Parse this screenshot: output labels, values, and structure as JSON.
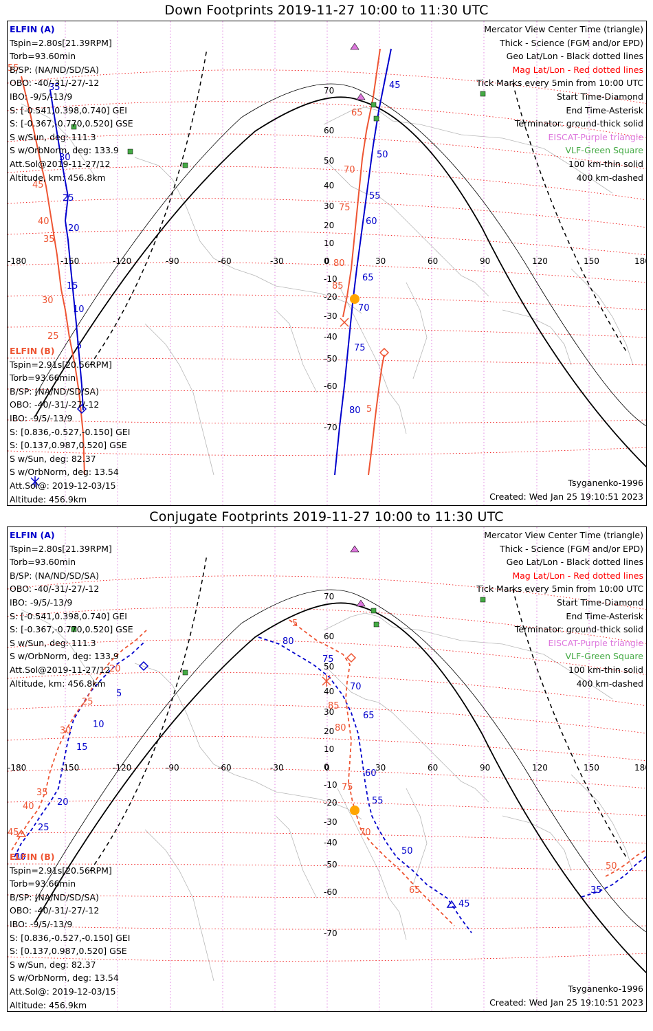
{
  "panels": [
    {
      "title": "Down Footprints 2019-11-27 10:00 to 11:30 UTC",
      "elfin_a": {
        "name": "ELFIN (A)",
        "lines": [
          "Tspin=2.80s[21.39RPM]",
          "Torb=93.60min",
          "B/SP: (NA/ND/SD/SA)",
          "OBO: -40/-31/-27/-12",
          "IBO: -9/5/-13/9",
          "S: [-0.541,0.398,0.740] GEI",
          "S: [-0.367,-0.770,0.520] GSE",
          "S w/Sun, deg: 111.3",
          "S w/OrbNorm, deg: 133.9",
          "Att.Sol@2019-11-27/12",
          "Altitude, km: 456.8km"
        ]
      },
      "elfin_b": {
        "name": "ELFIN (B)",
        "lines": [
          "Tspin=2.91s[20.56RPM]",
          "Torb=93.66min",
          "B/SP: (NA/ND/SD/SA)",
          "OBO: -40/-31/-27/-12",
          "IBO: -9/5/-13/9",
          "S: [0.836,-0.527,-0.150] GEI",
          "S: [0.137,0.987,0.520] GSE",
          "S w/Sun, deg: 82.37",
          "S w/OrbNorm, deg: 13.54",
          "Att.Sol@: 2019-12-03/15",
          "Altitude: 456.9km"
        ]
      },
      "legend": [
        "Mercator View Center Time (triangle)",
        "Thick - Science (FGM and/or EPD)",
        "Geo Lat/Lon - Black dotted lines",
        "Mag Lat/Lon - Red dotted lines",
        "Tick Marks every 5min from 10:00 UTC",
        "Start Time-Diamond",
        "End Time-Asterisk",
        "Terminator: ground-thick solid",
        "EISCAT-Purple triangle",
        "VLF-Green Square",
        "100 km-thin solid",
        "400 km-dashed"
      ],
      "model": "Tsyganenko-1996",
      "created": "Created: Wed Jan 25 19:10:51 2023"
    },
    {
      "title": "Conjugate Footprints 2019-11-27 10:00 to 11:30 UTC",
      "elfin_a": {
        "name": "ELFIN (A)",
        "lines": [
          "Tspin=2.80s[21.39RPM]",
          "Torb=93.60min",
          "B/SP: (NA/ND/SD/SA)",
          "OBO: -40/-31/-27/-12",
          "IBO: -9/5/-13/9",
          "S: [-0.541,0.398,0.740] GEI",
          "S: [-0.367,-0.770,0.520] GSE",
          "S w/Sun, deg: 111.3",
          "S w/OrbNorm, deg: 133.9",
          "Att.Sol@2019-11-27/12",
          "Altitude, km: 456.8km"
        ]
      },
      "elfin_b": {
        "name": "ELFIN (B)",
        "lines": [
          "Tspin=2.91s[20.56RPM]",
          "Torb=93.66min",
          "B/SP: (NA/ND/SD/SA)",
          "OBO: -40/-31/-27/-12",
          "IBO: -9/5/-13/9",
          "S: [0.836,-0.527,-0.150] GEI",
          "S: [0.137,0.987,0.520] GSE",
          "S w/Sun, deg: 82.37",
          "S w/OrbNorm, deg: 13.54",
          "Att.Sol@: 2019-12-03/15",
          "Altitude: 456.9km"
        ]
      },
      "legend": [
        "Mercator View Center Time (triangle)",
        "Thick - Science (FGM and/or EPD)",
        "Geo Lat/Lon - Black dotted lines",
        "Mag Lat/Lon - Red dotted lines",
        "Tick Marks every 5min from 10:00 UTC",
        "Start Time-Diamond",
        "End Time-Asterisk",
        "Terminator: ground-thick solid",
        "EISCAT-Purple triangle",
        "VLF-Green Square",
        "100 km-thin solid",
        "400 km-dashed"
      ],
      "model": "Tsyganenko-1996",
      "created": "Created: Wed Jan 25 19:10:51 2023"
    }
  ],
  "lon_ticks": [
    "-180",
    "-150",
    "-120",
    "-90",
    "-60",
    "-30",
    "0",
    "30",
    "60",
    "90",
    "120",
    "150",
    "180"
  ],
  "lat_ticks": [
    "70",
    "60",
    "50",
    "40",
    "30",
    "20",
    "10",
    "0",
    "-10",
    "-20",
    "-30",
    "-40",
    "-50",
    "-60",
    "-70"
  ],
  "colors": {
    "elfin_a": "#0000cc",
    "elfin_b": "#ee5533",
    "geo_grid": "#dd77dd",
    "mag_grid": "#ee0000",
    "coast": "#aaaaaa",
    "eiscat": "#dd77dd",
    "vlf": "#44aa44",
    "sun": "#ffa500"
  },
  "map_data": {
    "down": {
      "elfin_a": {
        "lon": [
          -157,
          -156,
          -154,
          -152,
          -150,
          -149,
          -150,
          -150,
          -150,
          -148,
          -146,
          -144,
          -143
        ],
        "lat": [
          -56,
          -48,
          -38,
          -30,
          -18,
          -8,
          8,
          20,
          30,
          40,
          50,
          58,
          66
        ],
        "labels": [
          {
            "t": "5",
            "lon": -145,
            "lat": -15
          },
          {
            "t": "10",
            "lon": -148,
            "lat": -5
          },
          {
            "t": "15",
            "lon": -150,
            "lat": 5
          },
          {
            "t": "20",
            "lon": -148,
            "lat": 24
          },
          {
            "t": "25",
            "lon": -150,
            "lat": 34
          },
          {
            "t": "30",
            "lon": -157,
            "lat": 55
          },
          {
            "t": "35",
            "lon": -160,
            "lat": 65
          }
        ]
      },
      "elfin_b": {
        "lon": [
          -178,
          -175,
          -170,
          -168,
          -162,
          -158,
          -153,
          -151
        ],
        "lat": [
          66,
          58,
          48,
          42,
          30,
          20,
          0,
          -20
        ],
        "labels": [
          {
            "t": "55",
            "lon": -180,
            "lat": 66
          },
          {
            "t": "45",
            "lon": -178,
            "lat": 43
          },
          {
            "t": "40",
            "lon": -176,
            "lat": 37
          },
          {
            "t": "35",
            "lon": -173,
            "lat": 31
          },
          {
            "t": "30",
            "lon": -168,
            "lat": -4
          },
          {
            "t": "25",
            "lon": -162,
            "lat": -12
          },
          {
            "t": "20",
            "lon": -157,
            "lat": -20
          }
        ]
      },
      "elfin_a_europe": {
        "lon": [
          4,
          8,
          13,
          17,
          20,
          23,
          26,
          30,
          34
        ],
        "lat": [
          -85,
          -70,
          -55,
          -40,
          -20,
          0,
          20,
          45,
          68
        ],
        "labels": [
          {
            "t": "80",
            "lon": 10,
            "lat": -60
          },
          {
            "t": "75",
            "lon": 16,
            "lat": -43
          },
          {
            "t": "70",
            "lon": 20,
            "lat": -23
          },
          {
            "t": "65",
            "lon": 22,
            "lat": -8
          },
          {
            "t": "60",
            "lon": 24,
            "lat": 15
          },
          {
            "t": "55",
            "lon": 26,
            "lat": 27
          },
          {
            "t": "50",
            "lon": 28,
            "lat": 50
          },
          {
            "t": "45",
            "lon": 34,
            "lat": 68
          }
        ]
      },
      "elfin_b_europe": {
        "lon": [
          24,
          26,
          28,
          29,
          30
        ],
        "lat": [
          -85,
          -70,
          -58,
          -50,
          -44
        ],
        "labels": [
          {
            "t": "5",
            "lon": 25,
            "lat": -60
          }
        ]
      },
      "elfin_b_red": {
        "lon": [
          12,
          14,
          16,
          17,
          18,
          20,
          24,
          28
        ],
        "lat": [
          -32,
          -18,
          -5,
          10,
          25,
          40,
          55,
          70
        ],
        "labels": [
          {
            "t": "85",
            "lon": 8,
            "lat": -12
          },
          {
            "t": "80",
            "lon": 6,
            "lat": -3
          },
          {
            "t": "75",
            "lon": 10,
            "lat": 32
          },
          {
            "t": "70",
            "lon": 12,
            "lat": 46
          },
          {
            "t": "65",
            "lon": 16,
            "lat": 64
          }
        ]
      }
    }
  }
}
